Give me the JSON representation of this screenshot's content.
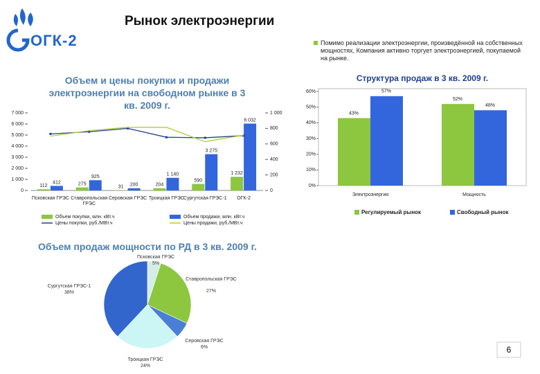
{
  "logo": {
    "text": "ОГК-2"
  },
  "header": {
    "title": "Рынок электроэнергии"
  },
  "bullet": "Помимо реализации электроэнергии, произведённой на собственных мощностях, Компания активно торгует электроэнергией, покупаемой на рынке.",
  "page_number": "6",
  "chart_data": [
    {
      "type": "combo",
      "title": "Объем и цены покупки и продажи электроэнергии на свободном рынке в 3 кв. 2009 г.",
      "categories": [
        "Псковская ГРЭС",
        "Ставропольская ГРЭС",
        "Серовская ГРЭС",
        "Троицкая ГРЭС",
        "Сургутская ГРЭС-1",
        "ОГК-2"
      ],
      "ylim": [
        0,
        7000
      ],
      "yticks": [
        0,
        {
          "value": 1000,
          "label": "1 000"
        },
        {
          "value": 2000,
          "label": "2 000"
        },
        {
          "value": 3000,
          "label": "3 000"
        },
        {
          "value": 4000,
          "label": "4 000"
        },
        {
          "value": 5000,
          "label": "5 000"
        },
        {
          "value": 6000,
          "label": "6 000"
        },
        {
          "value": 7000,
          "label": "7 000"
        }
      ],
      "y2lim": [
        0,
        1000
      ],
      "y2ticks": [
        0,
        200,
        400,
        600,
        800,
        {
          "value": 1000,
          "label": "1 000"
        }
      ],
      "series": [
        {
          "name": "Объем покупки, млн. кВт.ч",
          "kind": "bar",
          "color": "#8dc63f",
          "values": [
            112,
            275,
            31,
            204,
            590,
            1232
          ],
          "value_labels": [
            "112",
            "275",
            "31",
            "204",
            "590",
            "1 232"
          ]
        },
        {
          "name": "Объем продажи, млн. кВт.ч",
          "kind": "bar",
          "color": "#3366dd",
          "values": [
            412,
            925,
            200,
            1140,
            3275,
            6032
          ],
          "value_labels": [
            "412",
            "925",
            "200",
            "1 140",
            "3 275",
            "6 032"
          ]
        },
        {
          "name": "Цены покупки, руб./МВт.ч",
          "kind": "line",
          "axis": "y2",
          "color": "#1f3f8f",
          "values": [
            729,
            757,
            800,
            686,
            679,
            707
          ]
        },
        {
          "name": "Цены продажи, руб./МВт.ч",
          "kind": "line",
          "axis": "y2",
          "color": "#b5c93a",
          "values": [
            700,
            771,
            814,
            814,
            629,
            714
          ]
        }
      ]
    },
    {
      "type": "bar",
      "title": "Структура продаж в 3 кв. 2009 г.",
      "categories": [
        "Электроэнергия",
        "Мощность"
      ],
      "ylim": [
        0,
        60
      ],
      "yticks": [
        {
          "value": 0,
          "label": "0%"
        },
        {
          "value": 10,
          "label": "10%"
        },
        {
          "value": 20,
          "label": "20%"
        },
        {
          "value": 30,
          "label": "30%"
        },
        {
          "value": 40,
          "label": "40%"
        },
        {
          "value": 50,
          "label": "50%"
        },
        {
          "value": 60,
          "label": "60%"
        }
      ],
      "series": [
        {
          "name": "Регулируемый рынок",
          "color": "#8dc63f",
          "values": [
            43,
            52
          ],
          "value_labels": [
            "43%",
            "52%"
          ]
        },
        {
          "name": "Свободный рынок",
          "color": "#3366dd",
          "values": [
            57,
            48
          ],
          "value_labels": [
            "57%",
            "48%"
          ]
        }
      ]
    },
    {
      "type": "pie",
      "title": "Объем продаж мощности по РД в 3 кв. 2009 г.",
      "categories": [
        "Псковская ГРЭС",
        "Ставропольская ГРЭС",
        "Серовская ГРЭС",
        "Троицкая ГРЭС",
        "Сургутская ГРЭС-1"
      ],
      "values": [
        5,
        27,
        6,
        24,
        38
      ],
      "value_labels": [
        "5%",
        "27%",
        "6%",
        "24%",
        "38%"
      ],
      "colors": [
        "#d6ece6",
        "#8dc63f",
        "#4a7fd6",
        "#ccf6f6",
        "#3366cc"
      ]
    }
  ]
}
